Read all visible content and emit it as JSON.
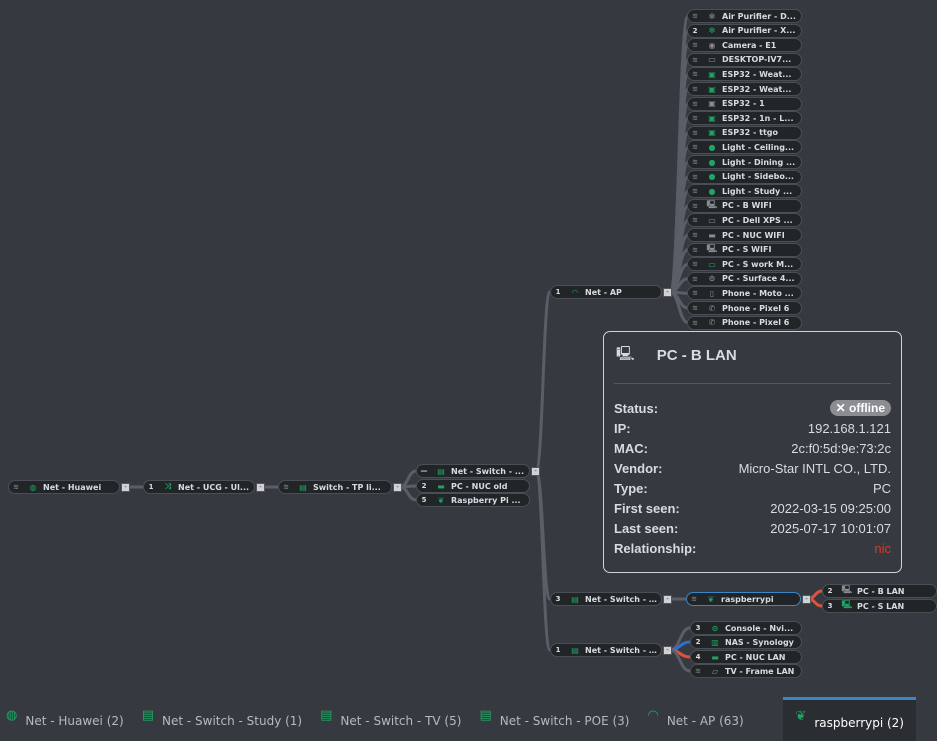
{
  "colors": {
    "accent": "#3a86c8",
    "icon_green": "#1fa463",
    "icon_gray": "#8a8d92",
    "link": "#5a5e66",
    "link_red": "#e0533a",
    "link_blue": "#2b6fd6",
    "offline": "#8a8d92",
    "relationship": "#d23a2a"
  },
  "tree": {
    "chain": [
      {
        "label": "Net - Huawei",
        "badge": "wifi",
        "icon": "globe-icon",
        "color": "green"
      },
      {
        "label": "Net - UCG - Ul...",
        "badge": "1",
        "icon": "shuffle-icon",
        "color": "green"
      },
      {
        "label": "Switch - TP li...",
        "badge": "wifi",
        "icon": "switch-icon",
        "color": "green"
      }
    ],
    "middle": [
      {
        "label": "Net - Switch - ...",
        "badge": "—",
        "icon": "switch-icon",
        "color": "green"
      },
      {
        "label": "PC - NUC old",
        "badge": "2",
        "icon": "nuc-icon",
        "color": "green"
      },
      {
        "label": "Raspberry Pi ...",
        "badge": "5",
        "icon": "raspberry-icon",
        "color": "green"
      }
    ],
    "ap": {
      "label": "Net - AP",
      "badge": "1",
      "icon": "wifi-icon",
      "color": "green"
    },
    "ap_children": [
      {
        "label": "Air Purifier - D...",
        "badge": "wifi",
        "icon": "fan-icon",
        "color": "gray"
      },
      {
        "label": "Air Purifier - X...",
        "badge": "2",
        "icon": "fan-icon",
        "color": "green"
      },
      {
        "label": "Camera - E1",
        "badge": "wifi",
        "icon": "camera-icon",
        "color": "gray"
      },
      {
        "label": "DESKTOP-IV7...",
        "badge": "wifi",
        "icon": "monitor-icon",
        "color": "gray"
      },
      {
        "label": "ESP32 - Weat...",
        "badge": "wifi",
        "icon": "chip-icon",
        "color": "green"
      },
      {
        "label": "ESP32 - Weat...",
        "badge": "wifi",
        "icon": "chip-icon",
        "color": "green"
      },
      {
        "label": "ESP32 - 1",
        "badge": "wifi",
        "icon": "chip-icon",
        "color": "gray"
      },
      {
        "label": "ESP32 - 1n - L...",
        "badge": "wifi",
        "icon": "chip-icon",
        "color": "green"
      },
      {
        "label": "ESP32 - ttgo",
        "badge": "wifi",
        "icon": "chip-icon",
        "color": "green"
      },
      {
        "label": "Light - Ceiling...",
        "badge": "wifi",
        "icon": "bulb-icon",
        "color": "green"
      },
      {
        "label": "Light - Dining ...",
        "badge": "wifi",
        "icon": "bulb-icon",
        "color": "green"
      },
      {
        "label": "Light - Sidebo...",
        "badge": "wifi",
        "icon": "bulb-icon",
        "color": "green"
      },
      {
        "label": "Light - Study ...",
        "badge": "wifi",
        "icon": "bulb-icon",
        "color": "green"
      },
      {
        "label": "PC - B WIFI",
        "badge": "wifi",
        "icon": "pc-icon",
        "color": "gray"
      },
      {
        "label": "PC - Dell XPS ...",
        "badge": "wifi",
        "icon": "monitor-icon",
        "color": "gray"
      },
      {
        "label": "PC - NUC WIFI",
        "badge": "wifi",
        "icon": "nuc-icon",
        "color": "gray"
      },
      {
        "label": "PC - S WIFI",
        "badge": "wifi",
        "icon": "pc-icon",
        "color": "gray"
      },
      {
        "label": "PC - S work M...",
        "badge": "wifi",
        "icon": "monitor-icon",
        "color": "green"
      },
      {
        "label": "PC - Surface 4...",
        "badge": "wifi",
        "icon": "gamepad-icon",
        "color": "gray"
      },
      {
        "label": "Phone - Moto ...",
        "badge": "wifi",
        "icon": "phone-icon",
        "color": "gray"
      },
      {
        "label": "Phone - Pixel 6",
        "badge": "wifi",
        "icon": "phone-call-icon",
        "color": "gray"
      },
      {
        "label": "Phone - Pixel 6",
        "badge": "wifi",
        "icon": "phone-call-icon",
        "color": "gray"
      }
    ],
    "switch_tv": {
      "label": "Net - Switch - ...",
      "badge": "3",
      "icon": "switch-icon",
      "color": "green"
    },
    "raspberrypi": {
      "label": "raspberrypi",
      "badge": "wifi",
      "icon": "raspberry-icon",
      "color": "green"
    },
    "rpi_children": [
      {
        "label": "PC - B LAN",
        "badge": "2",
        "icon": "pc-icon",
        "color": "gray"
      },
      {
        "label": "PC - S LAN",
        "badge": "3",
        "icon": "pc-icon",
        "color": "green"
      }
    ],
    "switch_poe": {
      "label": "Net - Switch - ...",
      "badge": "1",
      "icon": "switch-icon",
      "color": "green"
    },
    "poe_children": [
      {
        "label": "Console - Nvi...",
        "badge": "3",
        "icon": "gamepad-icon",
        "color": "green"
      },
      {
        "label": "NAS - Synology",
        "badge": "2",
        "icon": "nas-icon",
        "color": "green"
      },
      {
        "label": "PC - NUC LAN",
        "badge": "4",
        "icon": "nuc-icon",
        "color": "green"
      },
      {
        "label": "TV - Frame LAN",
        "badge": "wifi",
        "icon": "tv-icon",
        "color": "gray"
      }
    ]
  },
  "popup": {
    "title": "PC - B LAN",
    "icon": "pc-icon",
    "rows": [
      {
        "key": "Status:",
        "value": "✕ offline"
      },
      {
        "key": "IP:",
        "value": "192.168.1.121"
      },
      {
        "key": "MAC:",
        "value": "2c:f0:5d:9e:73:2c"
      },
      {
        "key": "Vendor:",
        "value": "Micro-Star INTL CO., LTD."
      },
      {
        "key": "Type:",
        "value": "PC"
      },
      {
        "key": "First seen:",
        "value": "2022-03-15 09:25:00"
      },
      {
        "key": "Last seen:",
        "value": "2025-07-17 10:01:07"
      },
      {
        "key": "Relationship:",
        "value": "nic"
      }
    ]
  },
  "tabs": [
    {
      "label": "Net - Huawei (2)",
      "icon": "globe-icon"
    },
    {
      "label": "Net - Switch - Study (1)",
      "icon": "switch-icon"
    },
    {
      "label": "Net - Switch - TV (5)",
      "icon": "switch-icon"
    },
    {
      "label": "Net - Switch - POE (3)",
      "icon": "switch-icon"
    },
    {
      "label": "Net - AP (63)",
      "icon": "wifi-icon"
    },
    {
      "label": "raspberrypi (2)",
      "icon": "raspberry-icon",
      "active": true
    }
  ]
}
